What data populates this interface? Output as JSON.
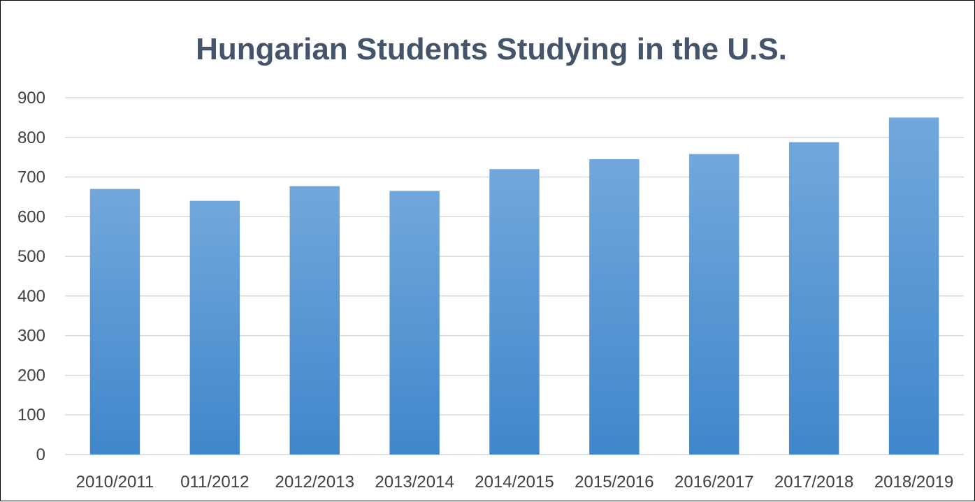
{
  "chart_data": {
    "type": "bar",
    "title": "Hungarian Students Studying in the U.S.",
    "xlabel": "",
    "ylabel": "",
    "categories": [
      "2010/2011",
      "011/2012",
      "2012/2013",
      "2013/2014",
      "2014/2015",
      "2015/2016",
      "2016/2017",
      "2017/2018",
      "2018/2019"
    ],
    "values": [
      670,
      640,
      677,
      665,
      720,
      745,
      758,
      788,
      850
    ],
    "ylim": [
      0,
      900
    ],
    "yticks": [
      0,
      100,
      200,
      300,
      400,
      500,
      600,
      700,
      800,
      900
    ],
    "grid": true,
    "legend": "none",
    "colors": {
      "bar_top": "#72a7dc",
      "bar_bottom": "#3f87cb",
      "title": "#44546a",
      "grid": "#d9d9d9"
    }
  }
}
